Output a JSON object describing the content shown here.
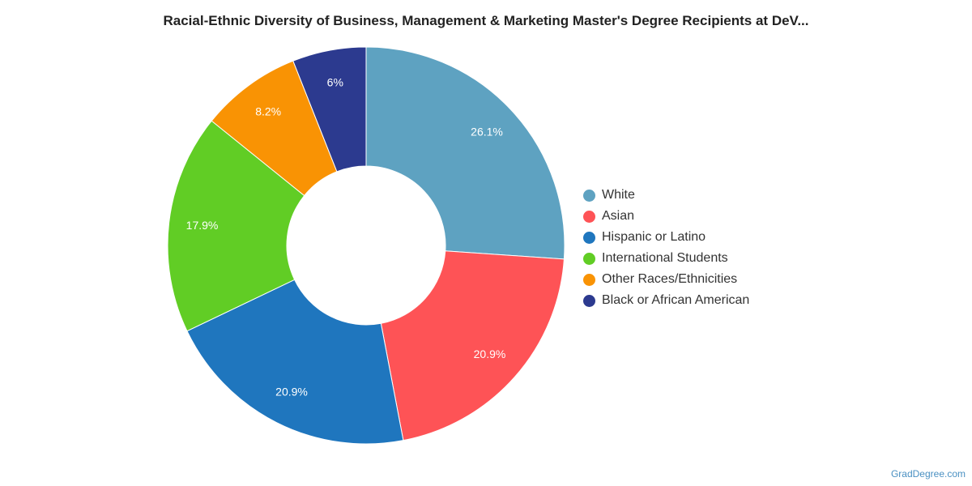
{
  "chart_data": {
    "type": "pie",
    "title": "Racial-Ethnic Diversity of Business, Management & Marketing Master's Degree Recipients at DeV...",
    "donut": true,
    "legend_position": "right",
    "series": [
      {
        "name": "White",
        "value": 26.1,
        "label": "26.1%",
        "color": "#5ea2c1"
      },
      {
        "name": "Asian",
        "value": 20.9,
        "label": "20.9%",
        "color": "#fe5356"
      },
      {
        "name": "Hispanic or Latino",
        "value": 20.9,
        "label": "20.9%",
        "color": "#1f76be"
      },
      {
        "name": "International Students",
        "value": 17.9,
        "label": "17.9%",
        "color": "#61cd25"
      },
      {
        "name": "Other Races/Ethnicities",
        "value": 8.2,
        "label": "8.2%",
        "color": "#f99304"
      },
      {
        "name": "Black or African American",
        "value": 6,
        "label": "6%",
        "color": "#2c3a8f"
      }
    ]
  },
  "watermark": "GradDegree.com"
}
